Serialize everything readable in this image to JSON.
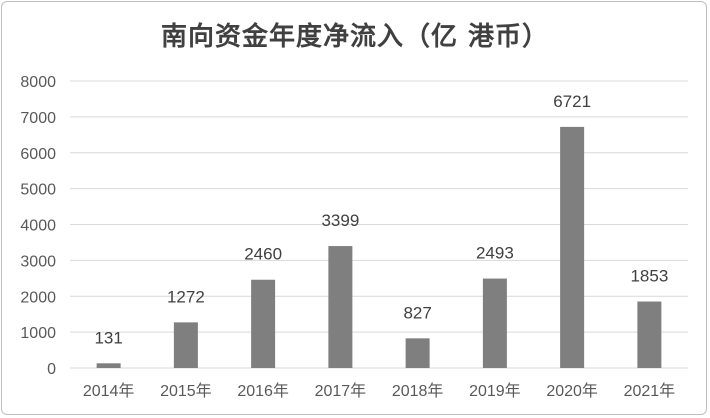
{
  "chart_data": {
    "type": "bar",
    "title": "南向资金年度净流入（亿 港币）",
    "categories": [
      "2014年",
      "2015年",
      "2016年",
      "2017年",
      "2018年",
      "2019年",
      "2020年",
      "2021年"
    ],
    "values": [
      131,
      1272,
      2460,
      3399,
      827,
      2493,
      6721,
      1853
    ],
    "ylim": [
      0,
      8000
    ],
    "yticks": [
      0,
      1000,
      2000,
      3000,
      4000,
      5000,
      6000,
      7000,
      8000
    ],
    "grid": true,
    "data_labels": true,
    "bar_color": "#7f7f7f",
    "grid_color": "#d9d9d9"
  }
}
